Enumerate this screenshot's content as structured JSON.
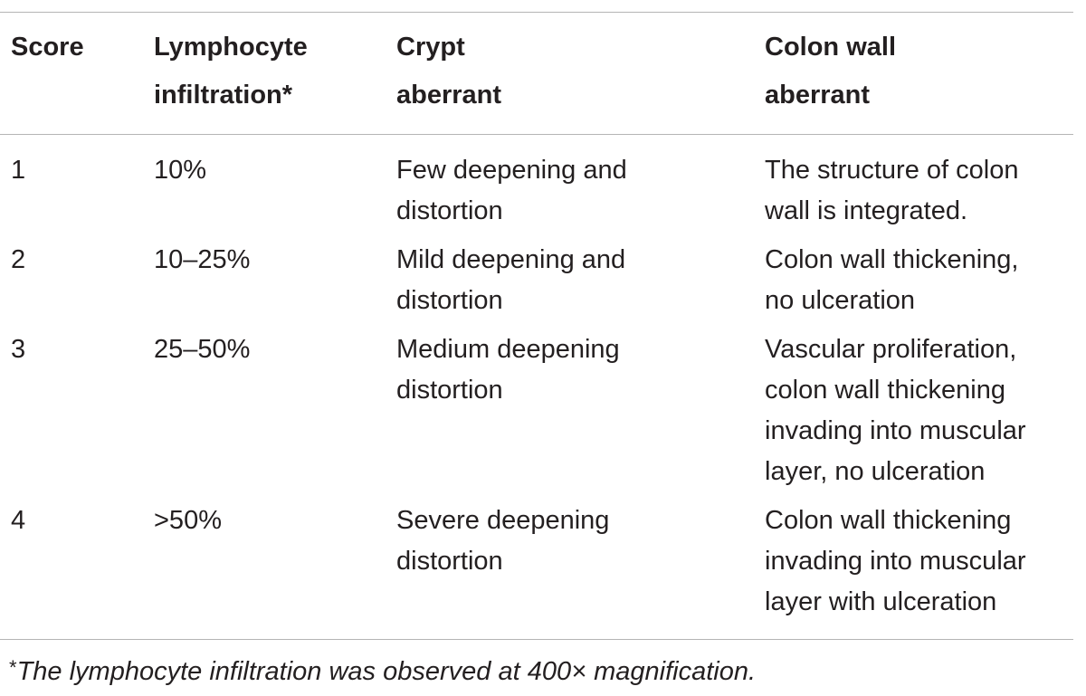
{
  "table": {
    "headers": [
      {
        "lines": [
          "Score"
        ]
      },
      {
        "lines": [
          "Lymphocyte",
          "infiltration*"
        ]
      },
      {
        "lines": [
          "Crypt",
          "aberrant"
        ]
      },
      {
        "lines": [
          "Colon wall",
          "aberrant"
        ]
      }
    ],
    "rows": [
      {
        "score": "1",
        "lymphocyte": "10%",
        "crypt": [
          "Few deepening and",
          "distortion"
        ],
        "colon_wall": [
          "The structure of colon",
          "wall is integrated."
        ]
      },
      {
        "score": "2",
        "lymphocyte": "10–25%",
        "crypt": [
          "Mild deepening and",
          "distortion"
        ],
        "colon_wall": [
          "Colon wall thickening,",
          "no ulceration"
        ]
      },
      {
        "score": "3",
        "lymphocyte": "25–50%",
        "crypt": [
          "Medium deepening",
          "distortion"
        ],
        "colon_wall": [
          "Vascular proliferation,",
          "colon wall thickening",
          "invading into muscular",
          "layer, no ulceration"
        ]
      },
      {
        "score": "4",
        "lymphocyte": ">50%",
        "crypt": [
          "Severe deepening",
          "distortion"
        ],
        "colon_wall": [
          "Colon wall thickening",
          "invading into muscular",
          "layer with ulceration"
        ]
      }
    ]
  },
  "footnote": {
    "marker": "*",
    "text": "The lymphocyte infiltration was observed at 400× magnification."
  }
}
